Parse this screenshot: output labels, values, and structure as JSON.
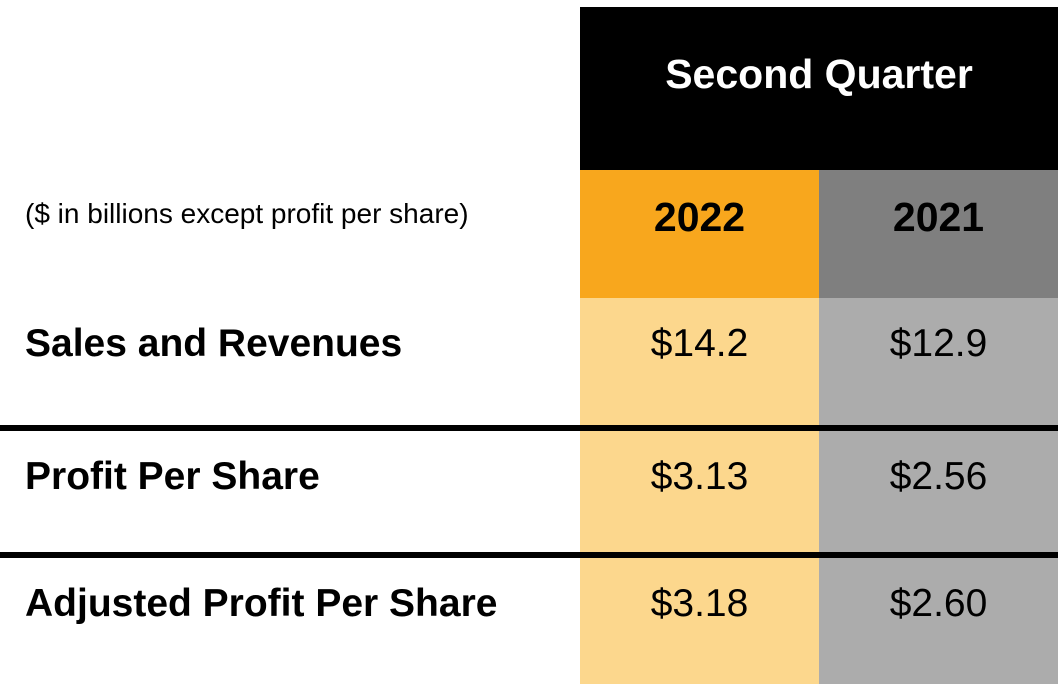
{
  "chart_data": {
    "type": "table",
    "title": "Second Quarter",
    "subtitle": "($ in billions except profit per share)",
    "columns": [
      "2022",
      "2021"
    ],
    "rows": [
      {
        "label": "Sales and Revenues",
        "values": [
          "$14.2",
          "$12.9"
        ]
      },
      {
        "label": "Profit Per Share",
        "values": [
          "$3.13",
          "$2.56"
        ]
      },
      {
        "label": "Adjusted Profit Per Share",
        "values": [
          "$3.18",
          "$2.60"
        ]
      }
    ],
    "numeric": {
      "sales_and_revenues": {
        "2022": 14.2,
        "2021": 12.9
      },
      "profit_per_share": {
        "2022": 3.13,
        "2021": 2.56
      },
      "adjusted_profit_per_share": {
        "2022": 3.18,
        "2021": 2.6
      }
    },
    "units": "USD billions (sales and revenues); USD per share (profit rows)",
    "layout": {
      "legend": "none",
      "grid": "off",
      "header_position": "top"
    },
    "colors": {
      "title_bg": "#000000",
      "title_text": "#FFFFFF",
      "col_2022_header_bg": "#F8A71D",
      "col_2022_cell_bg": "#FCD78D",
      "col_2021_header_bg": "#7F7F7F",
      "col_2021_cell_bg": "#ACACAC",
      "divider": "#000000",
      "body_text": "#000000",
      "page_bg": "#FFFFFF"
    }
  }
}
